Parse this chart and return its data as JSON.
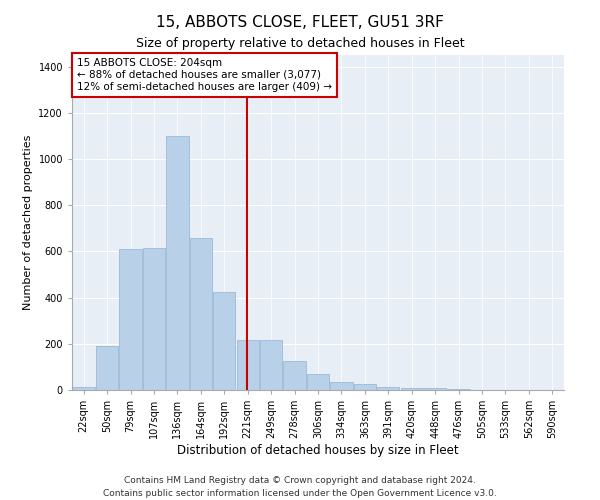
{
  "title": "15, ABBOTS CLOSE, FLEET, GU51 3RF",
  "subtitle": "Size of property relative to detached houses in Fleet",
  "xlabel": "Distribution of detached houses by size in Fleet",
  "ylabel": "Number of detached properties",
  "categories": [
    "22sqm",
    "50sqm",
    "79sqm",
    "107sqm",
    "136sqm",
    "164sqm",
    "192sqm",
    "221sqm",
    "249sqm",
    "278sqm",
    "306sqm",
    "334sqm",
    "363sqm",
    "391sqm",
    "420sqm",
    "448sqm",
    "476sqm",
    "505sqm",
    "533sqm",
    "562sqm",
    "590sqm"
  ],
  "values": [
    15,
    190,
    610,
    615,
    1100,
    660,
    425,
    215,
    215,
    125,
    70,
    35,
    28,
    15,
    10,
    8,
    3,
    2,
    1,
    1,
    0
  ],
  "bar_color": "#b8d0e8",
  "bar_edge_color": "#8fb4d4",
  "background_color": "#e8eef5",
  "grid_color": "#ffffff",
  "vline_color": "#cc0000",
  "vline_index": 6.97,
  "annotation_text": "15 ABBOTS CLOSE: 204sqm\n← 88% of detached houses are smaller (3,077)\n12% of semi-detached houses are larger (409) →",
  "annotation_box_facecolor": "#ffffff",
  "annotation_box_edgecolor": "#cc0000",
  "ylim": [
    0,
    1450
  ],
  "yticks": [
    0,
    200,
    400,
    600,
    800,
    1000,
    1200,
    1400
  ],
  "footer1": "Contains HM Land Registry data © Crown copyright and database right 2024.",
  "footer2": "Contains public sector information licensed under the Open Government Licence v3.0.",
  "title_fontsize": 11,
  "subtitle_fontsize": 9,
  "xlabel_fontsize": 8.5,
  "ylabel_fontsize": 8,
  "tick_fontsize": 7,
  "annotation_fontsize": 7.5,
  "footer_fontsize": 6.5
}
